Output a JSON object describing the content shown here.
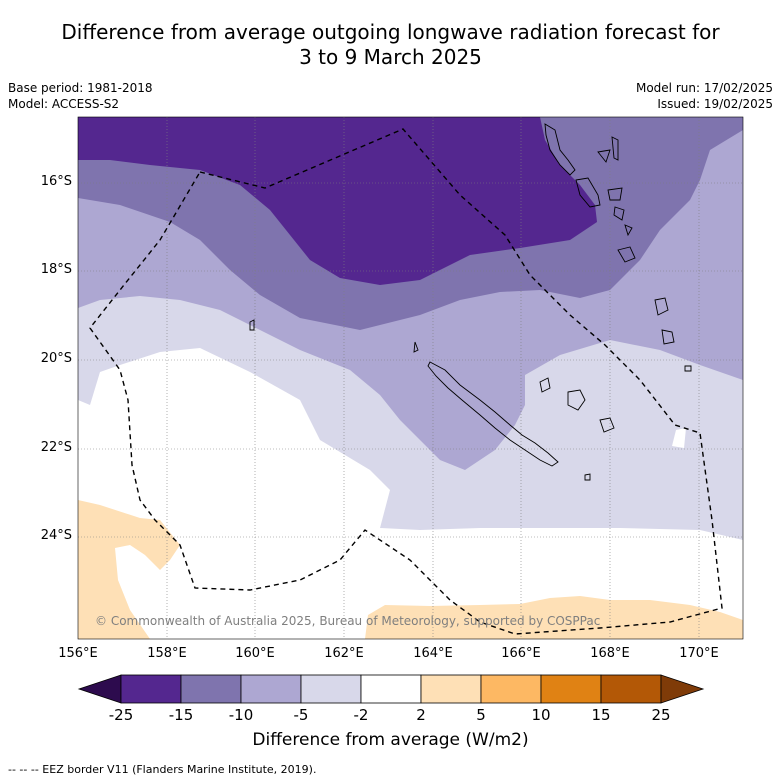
{
  "title_line1": "Difference from average outgoing longwave radiation forecast for",
  "title_line2": "3 to 9 March 2025",
  "meta_left": {
    "base_period": "Base period: 1981-2018",
    "model": "Model: ACCESS-S2"
  },
  "meta_right": {
    "model_run": "Model run: 17/02/2025",
    "issued": "Issued: 19/02/2025"
  },
  "x_ticks": [
    "156°E",
    "158°E",
    "160°E",
    "162°E",
    "164°E",
    "166°E",
    "168°E",
    "170°E"
  ],
  "y_ticks": [
    "16°S",
    "18°S",
    "20°S",
    "22°S",
    "24°S"
  ],
  "copyright": "© Commonwealth of Australia 2025, Bureau of Meteorology, supported by COSPPac",
  "colorbar": {
    "labels": [
      "-25",
      "-15",
      "-10",
      "-5",
      "-2",
      "2",
      "5",
      "10",
      "15",
      "25"
    ],
    "colors": [
      "#2d0b4e",
      "#54278f",
      "#7f74ae",
      "#ada7d2",
      "#d8d8ea",
      "#ffffff",
      "#fee0b6",
      "#fdb863",
      "#e08214",
      "#b35806",
      "#7f3b08"
    ],
    "title": "Difference from average (W/m2)"
  },
  "legend_text": "--  --  -- EEZ border V11 (Flanders Marine Institute, 2019)."
}
